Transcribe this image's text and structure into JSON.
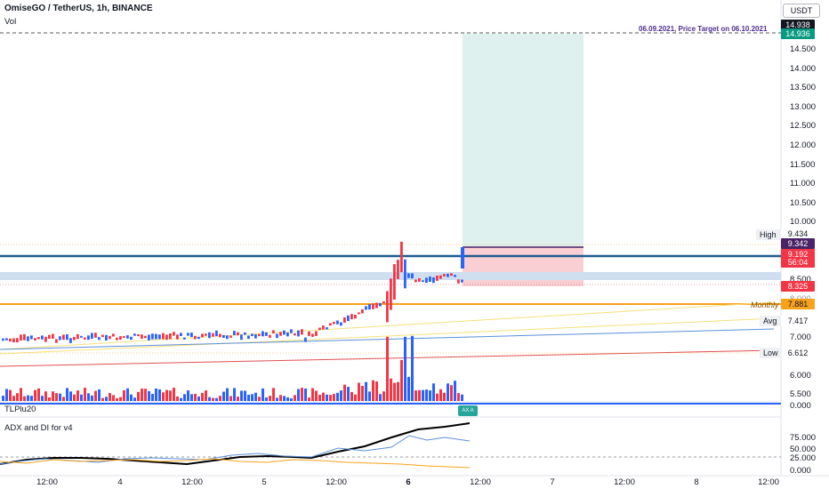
{
  "header": {
    "symbol_title": "OmiseGO / TetherUS, 1h, BINANCE",
    "volume_label": "Vol",
    "currency": "USDT"
  },
  "panes": {
    "indicator_1": "TLPlu20",
    "indicator_2": "ADX and DI for v4"
  },
  "annotation": {
    "target_text": "06.09.2021, Price Target on 06.10.2021",
    "flag_text": "AX A"
  },
  "price_axis": {
    "ticks": [
      "14.500",
      "14.000",
      "13.500",
      "13.000",
      "12.500",
      "12.000",
      "11.500",
      "11.000",
      "10.500",
      "10.000",
      "8.500",
      "8.000",
      "7.000",
      "6.000",
      "5.500"
    ],
    "tags": [
      {
        "text": "14.938",
        "bg": "#131722"
      },
      {
        "text": "14.936",
        "bg": "#089981"
      },
      {
        "text": "9.434",
        "bg": "#ffffff"
      },
      {
        "text": "9.342",
        "bg": "#4a2266"
      },
      {
        "text": "9.192",
        "bg": "#f23645"
      },
      {
        "text": "56:04",
        "bg": "#f23645"
      },
      {
        "text": "8.325",
        "bg": "#f23645"
      },
      {
        "text": "7.881",
        "bg": "#f7a21b"
      },
      {
        "text": "7.417",
        "bg": "#ffffff"
      },
      {
        "text": "6.612",
        "bg": "#ffffff"
      }
    ],
    "level_labels": {
      "high": "High",
      "monthly": "Monthly",
      "avg": "Avg",
      "low": "Low"
    }
  },
  "indicator_axis": {
    "tlp_ticks": [
      "0.000"
    ],
    "adx_ticks": [
      "75.000",
      "50.000",
      "25.000",
      "0.000"
    ]
  },
  "time_axis": {
    "ticks": [
      "12:00",
      "4",
      "12:00",
      "5",
      "12:00",
      "6",
      "12:00",
      "7",
      "12:00",
      "8",
      "12:00"
    ]
  },
  "colors": {
    "up": "#2962ff",
    "down": "#f23645",
    "monthly": "#f7a21b",
    "target_zone": "#d7eeea",
    "stop_zone": "#f9c7cb",
    "blue_band": "#cfdff0"
  }
}
